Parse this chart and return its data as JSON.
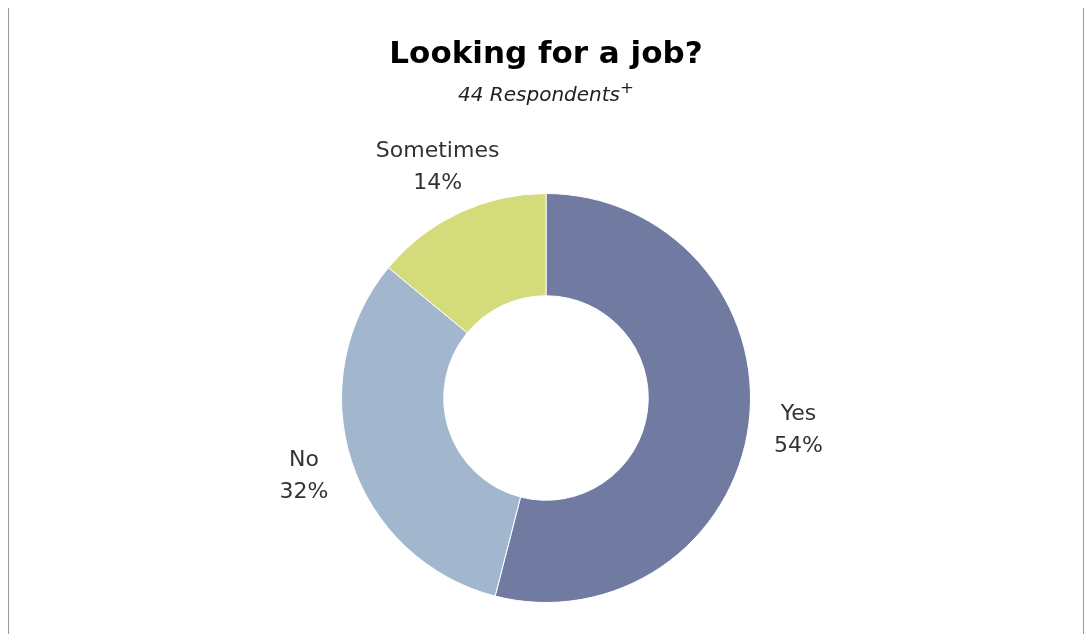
{
  "chart_data": {
    "type": "donut",
    "title": "Looking for a job?",
    "subtitle": "44 Respondents$^{+}$",
    "categories": [
      "Yes",
      "No",
      "Sometimes"
    ],
    "values": [
      54,
      32,
      14
    ],
    "colors": [
      "#717ba2",
      "#a2b7cd",
      "#d4db7b"
    ],
    "value_labels": [
      "54%",
      "32%",
      "14%"
    ],
    "legend": false
  }
}
